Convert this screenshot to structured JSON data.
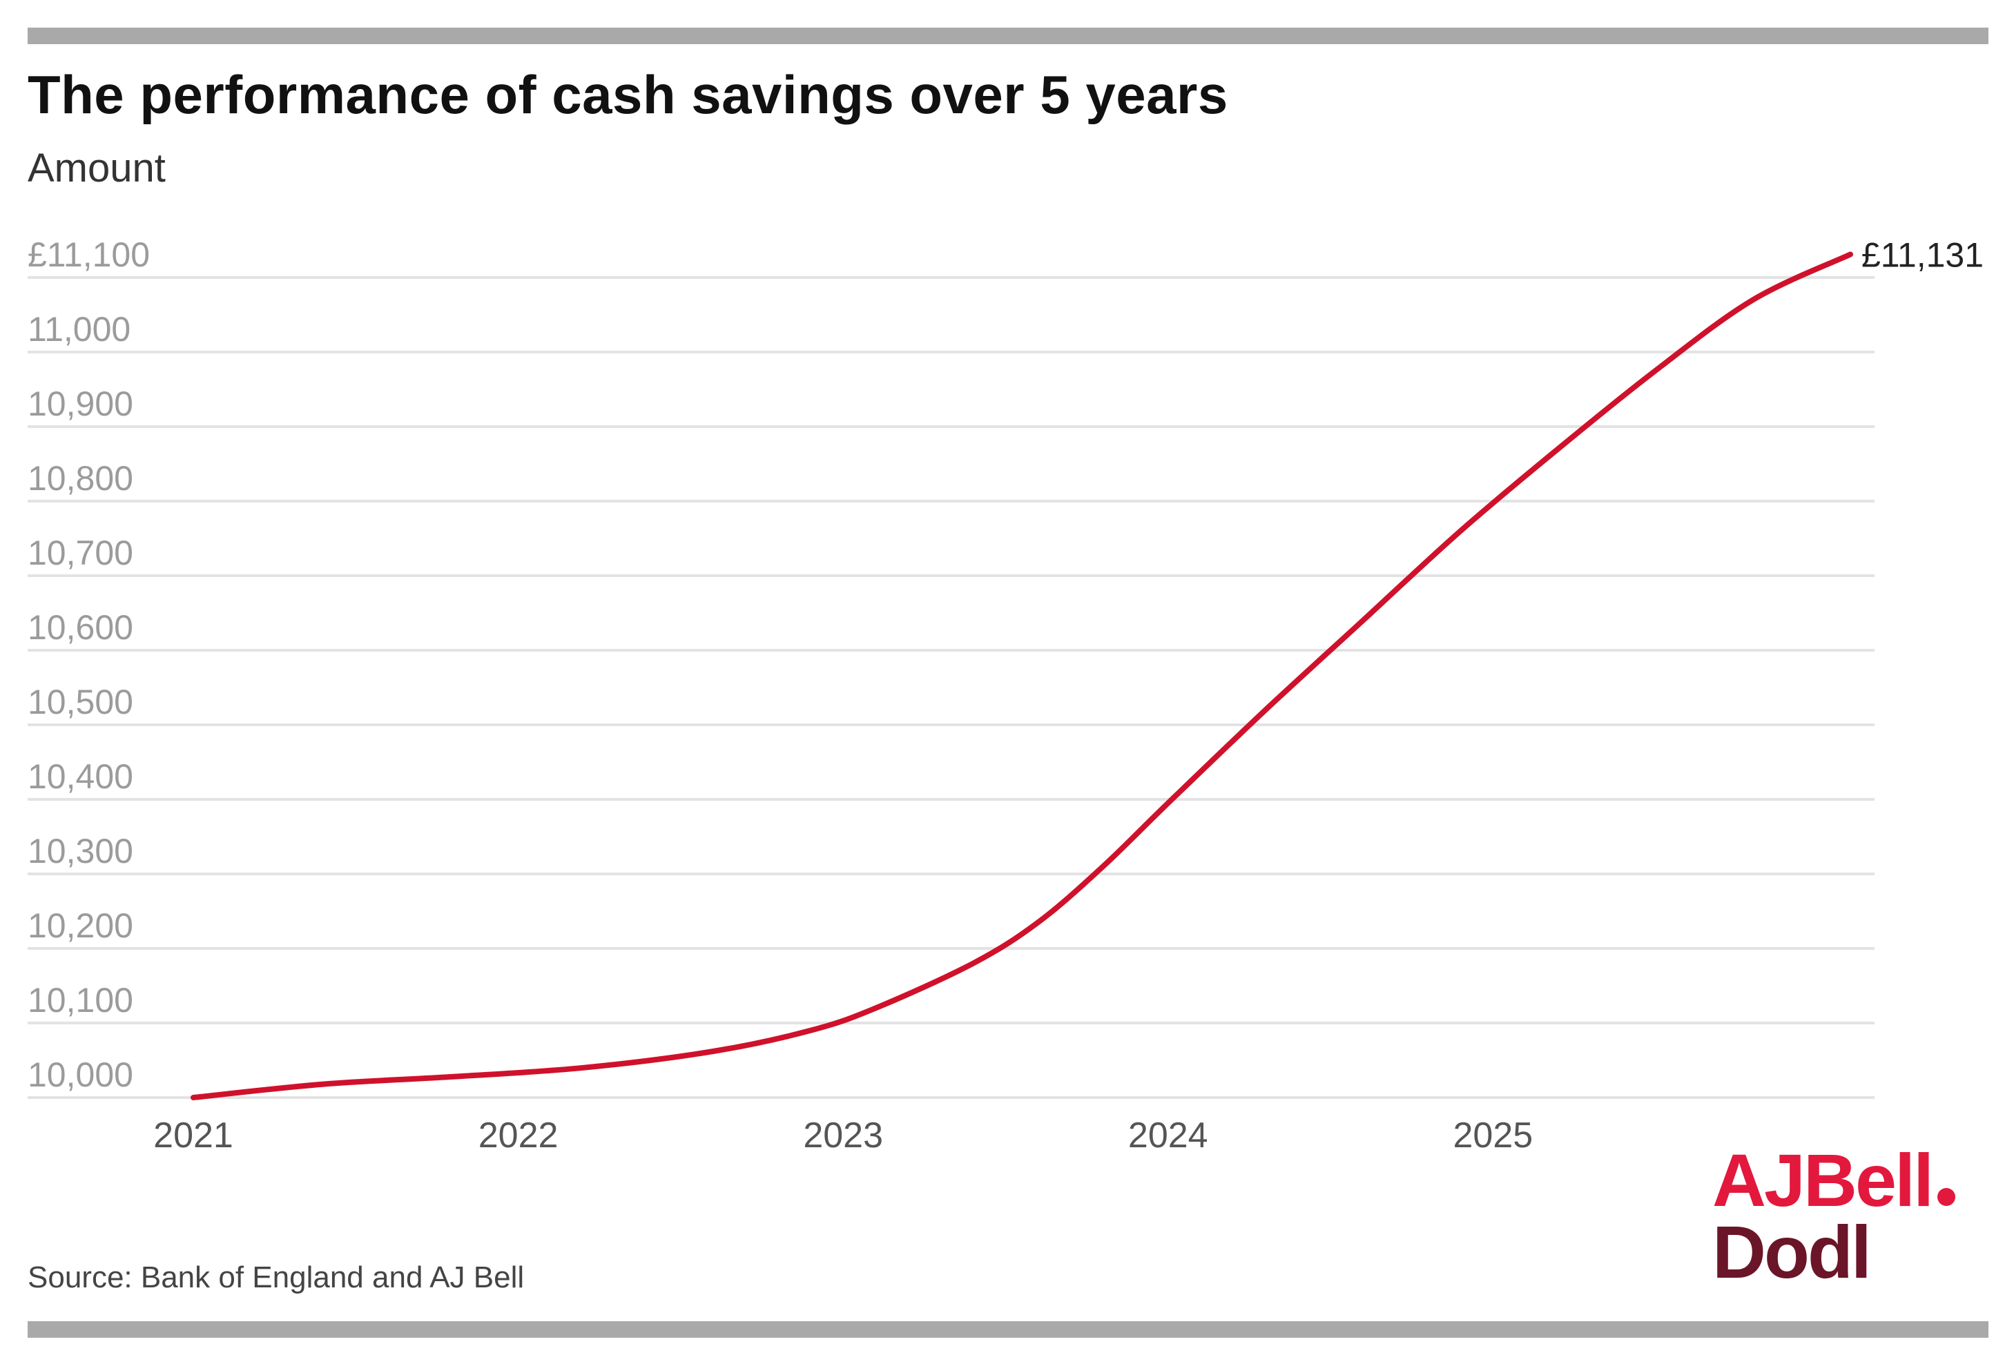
{
  "header": {
    "title": "The performance of cash savings over 5 years",
    "subtitle": "Amount"
  },
  "footer": {
    "source": "Source: Bank of England and AJ Bell"
  },
  "logo": {
    "line1": "AJBell",
    "line2": "Dodl"
  },
  "colors": {
    "line": "#d0112b",
    "grid": "#e3e3e3",
    "tick_label": "#9b9b9b",
    "end_label": "#222222",
    "rule_bars": "#a9a9a9",
    "logo_red": "#e3183d",
    "logo_maroon": "#6b1529"
  },
  "chart_data": {
    "type": "line",
    "title": "The performance of cash savings over 5 years",
    "ylabel": "Amount",
    "xlabel": "",
    "xlim": [
      2021,
      2026.1
    ],
    "ylim": [
      10000,
      11100
    ],
    "y_ticks": [
      10000,
      10100,
      10200,
      10300,
      10400,
      10500,
      10600,
      10700,
      10800,
      10900,
      11000,
      11100
    ],
    "y_tick_labels": [
      "10,000",
      "10,100",
      "10,200",
      "10,300",
      "10,400",
      "10,500",
      "10,600",
      "10,700",
      "10,800",
      "10,900",
      "11,000",
      "£11,100"
    ],
    "x_ticks": [
      2021,
      2022,
      2023,
      2024,
      2025
    ],
    "x_tick_labels": [
      "2021",
      "2022",
      "2023",
      "2024",
      "2025"
    ],
    "grid": true,
    "legend": "none",
    "series": [
      {
        "x": [
          2021.0,
          2021.4,
          2021.8,
          2022.2,
          2022.6,
          2022.9,
          2023.1,
          2023.4,
          2023.6,
          2023.8,
          2024.0,
          2024.3,
          2024.6,
          2024.9,
          2025.2,
          2025.5,
          2025.8,
          2026.1
        ],
        "values": [
          10000,
          10018,
          10028,
          10040,
          10062,
          10090,
          10120,
          10180,
          10235,
          10310,
          10395,
          10520,
          10640,
          10760,
          10870,
          10975,
          11070,
          11131
        ]
      }
    ],
    "end_label": "£11,131"
  }
}
